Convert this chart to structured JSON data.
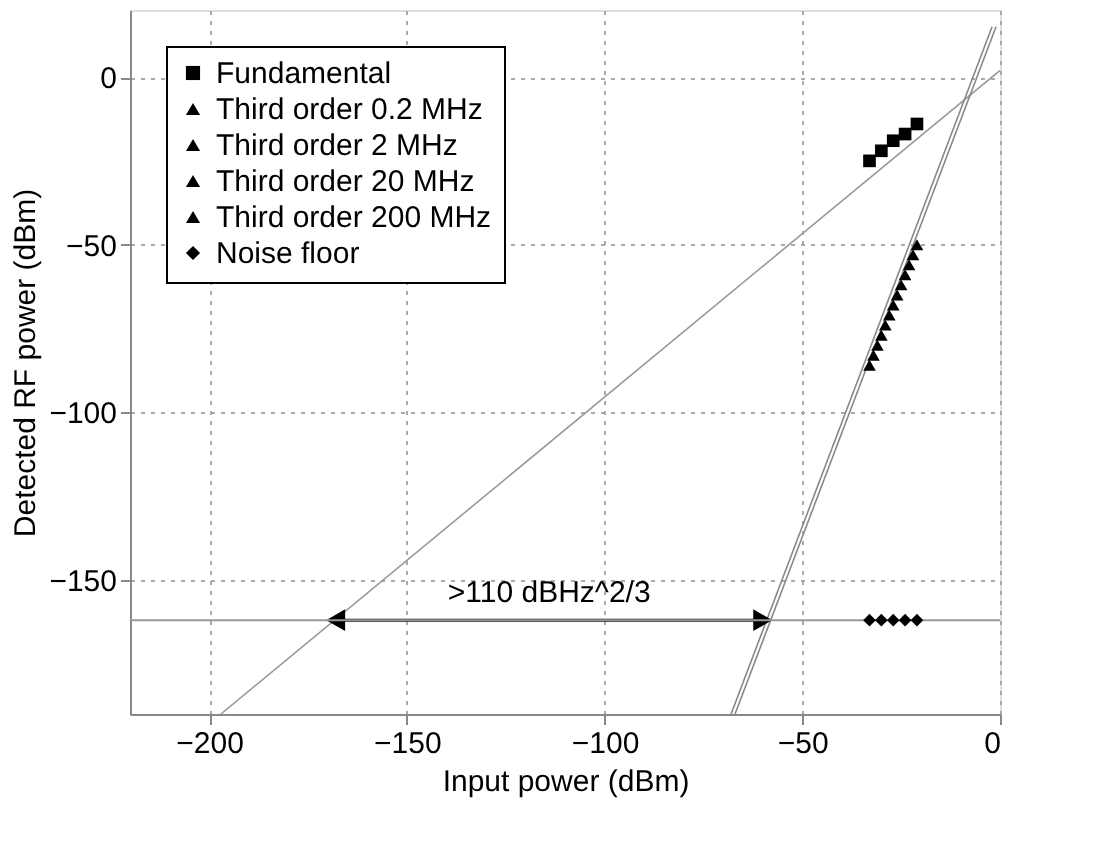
{
  "chart_data": {
    "type": "scatter",
    "xlabel": "Input power (dBm)",
    "ylabel": "Detected RF power (dBm)",
    "xlim": [
      -220,
      0
    ],
    "ylim": [
      -190,
      20
    ],
    "xticks": [
      -200,
      -150,
      -100,
      -50,
      0
    ],
    "yticks": [
      -150,
      -100,
      -50,
      0
    ],
    "grid": true,
    "legend": "top left",
    "line_style": "solid",
    "series": [
      {
        "name": "Fundamental",
        "color": "#000000",
        "marker": "square",
        "x": [
          -33,
          -30,
          -27,
          -24,
          -21
        ],
        "values": [
          -25,
          -22,
          -19,
          -17,
          -14
        ]
      },
      {
        "name": "Third order 0.2 MHz",
        "color": "#000000",
        "marker": "triangle",
        "x": [
          -33,
          -32,
          -31
        ],
        "values": [
          -86,
          -83,
          -80
        ]
      },
      {
        "name": "Third order 2 MHz",
        "color": "#000000",
        "marker": "triangle",
        "x": [
          -30,
          -29,
          -28
        ],
        "values": [
          -77,
          -74,
          -71
        ]
      },
      {
        "name": "Third order 20 MHz",
        "color": "#000000",
        "marker": "triangle",
        "x": [
          -27,
          -26,
          -25
        ],
        "values": [
          -68,
          -65,
          -62
        ]
      },
      {
        "name": "Third order 200 MHz",
        "color": "#000000",
        "marker": "triangle",
        "x": [
          -24,
          -23,
          -22,
          -21
        ],
        "values": [
          -59,
          -56,
          -53,
          -50
        ]
      },
      {
        "name": "Noise floor",
        "color": "#000000",
        "marker": "diamond",
        "x": [
          -33,
          -30,
          -27,
          -24,
          -21
        ],
        "values": [
          -162,
          -162,
          -162,
          -162,
          -162
        ]
      },
      {
        "type": "line",
        "color": "#999999",
        "marker": "none",
        "x": [
          -197,
          0
        ],
        "values": [
          -190,
          2
        ]
      },
      {
        "type": "line",
        "color": "#888888",
        "marker": "none",
        "x": [
          -68,
          -2
        ],
        "values": [
          -190,
          15
        ]
      },
      {
        "type": "line",
        "color": "#888888",
        "marker": "none",
        "x": [
          -67,
          -1
        ],
        "values": [
          -190,
          15
        ]
      },
      {
        "type": "line",
        "color": "#000000",
        "marker": "triangle",
        "x": [
          -168,
          -60
        ],
        "values": [
          -162,
          -162
        ]
      }
    ],
    "ref_lines": [
      {
        "axis": "y",
        "value": -162,
        "color": "#999999"
      }
    ],
    "annotations": [
      {
        "text": ">110 dBHz^2/3",
        "x": -114,
        "y": -162
      }
    ]
  }
}
